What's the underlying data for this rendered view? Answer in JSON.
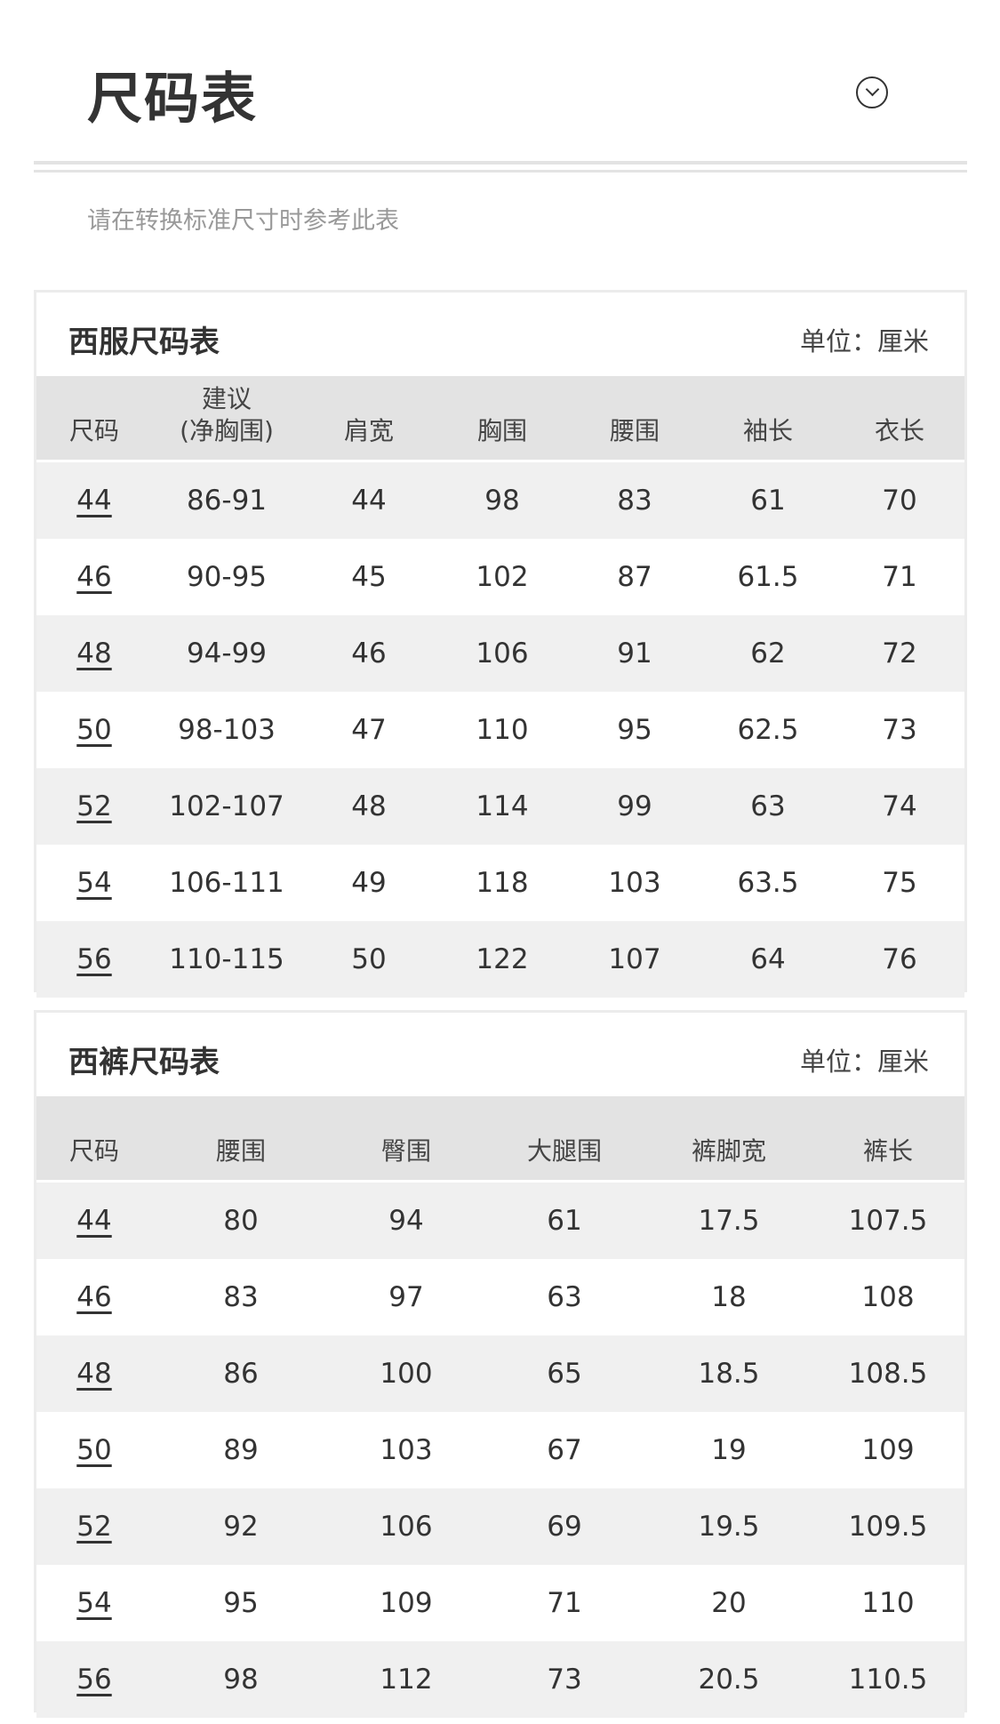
{
  "header": {
    "title": "尺码表",
    "subtitle": "请在转换标准尺寸时参考此表",
    "collapse_icon": "chevron-down-circle-icon"
  },
  "jacket": {
    "title": "西服尺码表",
    "unit": "单位：厘米",
    "columns": [
      "尺码",
      "建议\n(净胸围)",
      "肩宽",
      "胸围",
      "腰围",
      "袖长",
      "衣长"
    ],
    "rows": [
      [
        "44",
        "86-91",
        "44",
        "98",
        "83",
        "61",
        "70"
      ],
      [
        "46",
        "90-95",
        "45",
        "102",
        "87",
        "61.5",
        "71"
      ],
      [
        "48",
        "94-99",
        "46",
        "106",
        "91",
        "62",
        "72"
      ],
      [
        "50",
        "98-103",
        "47",
        "110",
        "95",
        "62.5",
        "73"
      ],
      [
        "52",
        "102-107",
        "48",
        "114",
        "99",
        "63",
        "74"
      ],
      [
        "54",
        "106-111",
        "49",
        "118",
        "103",
        "63.5",
        "75"
      ],
      [
        "56",
        "110-115",
        "50",
        "122",
        "107",
        "64",
        "76"
      ]
    ]
  },
  "trousers": {
    "title": "西裤尺码表",
    "unit": "单位：厘米",
    "columns": [
      "尺码",
      "腰围",
      "臀围",
      "大腿围",
      "裤脚宽",
      "裤长"
    ],
    "rows": [
      [
        "44",
        "80",
        "94",
        "61",
        "17.5",
        "107.5"
      ],
      [
        "46",
        "83",
        "97",
        "63",
        "18",
        "108"
      ],
      [
        "48",
        "86",
        "100",
        "65",
        "18.5",
        "108.5"
      ],
      [
        "50",
        "89",
        "103",
        "67",
        "19",
        "109"
      ],
      [
        "52",
        "92",
        "106",
        "69",
        "19.5",
        "109.5"
      ],
      [
        "54",
        "95",
        "109",
        "71",
        "20",
        "110"
      ],
      [
        "56",
        "98",
        "112",
        "73",
        "20.5",
        "110.5"
      ]
    ]
  }
}
